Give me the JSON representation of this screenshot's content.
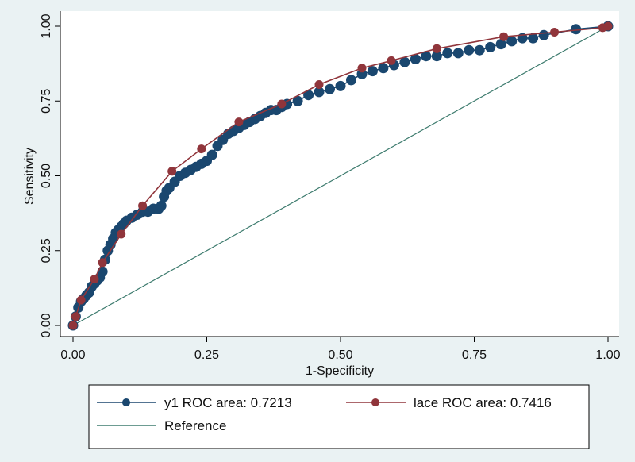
{
  "chart_data": {
    "type": "line",
    "title": "",
    "xlabel": "1-Specificity",
    "ylabel": "Sensitivity",
    "xlim": [
      0,
      1
    ],
    "ylim": [
      0,
      1
    ],
    "x_ticks": [
      "0.00",
      "0.25",
      "0.50",
      "0.75",
      "1.00"
    ],
    "y_ticks": [
      "0.00",
      "0.25",
      "0.50",
      "0.75",
      "1.00"
    ],
    "grid": false,
    "legend_position": "bottom",
    "colors": {
      "background": "#eaf2f3",
      "plot_background": "#ffffff",
      "y1": "#1a476f",
      "lace": "#90353b",
      "reference": "#3d7b6e"
    },
    "series": [
      {
        "name": "y1 ROC area: 0.7213",
        "style": "line-markers",
        "x": [
          0.0,
          0.005,
          0.01,
          0.015,
          0.02,
          0.025,
          0.03,
          0.035,
          0.04,
          0.045,
          0.05,
          0.055,
          0.06,
          0.065,
          0.07,
          0.075,
          0.08,
          0.085,
          0.09,
          0.095,
          0.1,
          0.11,
          0.12,
          0.13,
          0.14,
          0.15,
          0.16,
          0.165,
          0.17,
          0.175,
          0.18,
          0.19,
          0.2,
          0.21,
          0.22,
          0.23,
          0.24,
          0.25,
          0.26,
          0.27,
          0.28,
          0.29,
          0.3,
          0.31,
          0.32,
          0.33,
          0.34,
          0.35,
          0.36,
          0.37,
          0.38,
          0.39,
          0.4,
          0.42,
          0.44,
          0.46,
          0.48,
          0.5,
          0.52,
          0.54,
          0.56,
          0.58,
          0.6,
          0.62,
          0.64,
          0.66,
          0.68,
          0.7,
          0.72,
          0.74,
          0.76,
          0.78,
          0.8,
          0.82,
          0.84,
          0.86,
          0.88,
          0.94,
          1.0
        ],
        "y": [
          0.0,
          0.03,
          0.06,
          0.08,
          0.09,
          0.1,
          0.11,
          0.13,
          0.14,
          0.15,
          0.16,
          0.18,
          0.22,
          0.25,
          0.27,
          0.29,
          0.31,
          0.32,
          0.33,
          0.34,
          0.35,
          0.36,
          0.37,
          0.38,
          0.38,
          0.39,
          0.39,
          0.4,
          0.43,
          0.45,
          0.46,
          0.48,
          0.5,
          0.51,
          0.52,
          0.53,
          0.54,
          0.55,
          0.57,
          0.6,
          0.62,
          0.64,
          0.65,
          0.66,
          0.67,
          0.68,
          0.69,
          0.7,
          0.71,
          0.72,
          0.72,
          0.73,
          0.74,
          0.75,
          0.77,
          0.78,
          0.79,
          0.8,
          0.82,
          0.84,
          0.85,
          0.86,
          0.87,
          0.88,
          0.89,
          0.9,
          0.9,
          0.91,
          0.91,
          0.92,
          0.92,
          0.93,
          0.94,
          0.95,
          0.96,
          0.96,
          0.97,
          0.99,
          1.0
        ]
      },
      {
        "name": "lace ROC area: 0.7416",
        "style": "line-markers",
        "x": [
          0.0,
          0.005,
          0.015,
          0.04,
          0.055,
          0.09,
          0.13,
          0.185,
          0.24,
          0.31,
          0.39,
          0.46,
          0.54,
          0.595,
          0.68,
          0.805,
          0.9,
          0.99,
          1.0
        ],
        "y": [
          0.0,
          0.03,
          0.085,
          0.155,
          0.21,
          0.305,
          0.4,
          0.515,
          0.59,
          0.68,
          0.74,
          0.805,
          0.86,
          0.885,
          0.925,
          0.965,
          0.98,
          0.995,
          1.0
        ]
      },
      {
        "name": "Reference",
        "style": "line",
        "x": [
          0,
          1
        ],
        "y": [
          0,
          1
        ]
      }
    ]
  }
}
